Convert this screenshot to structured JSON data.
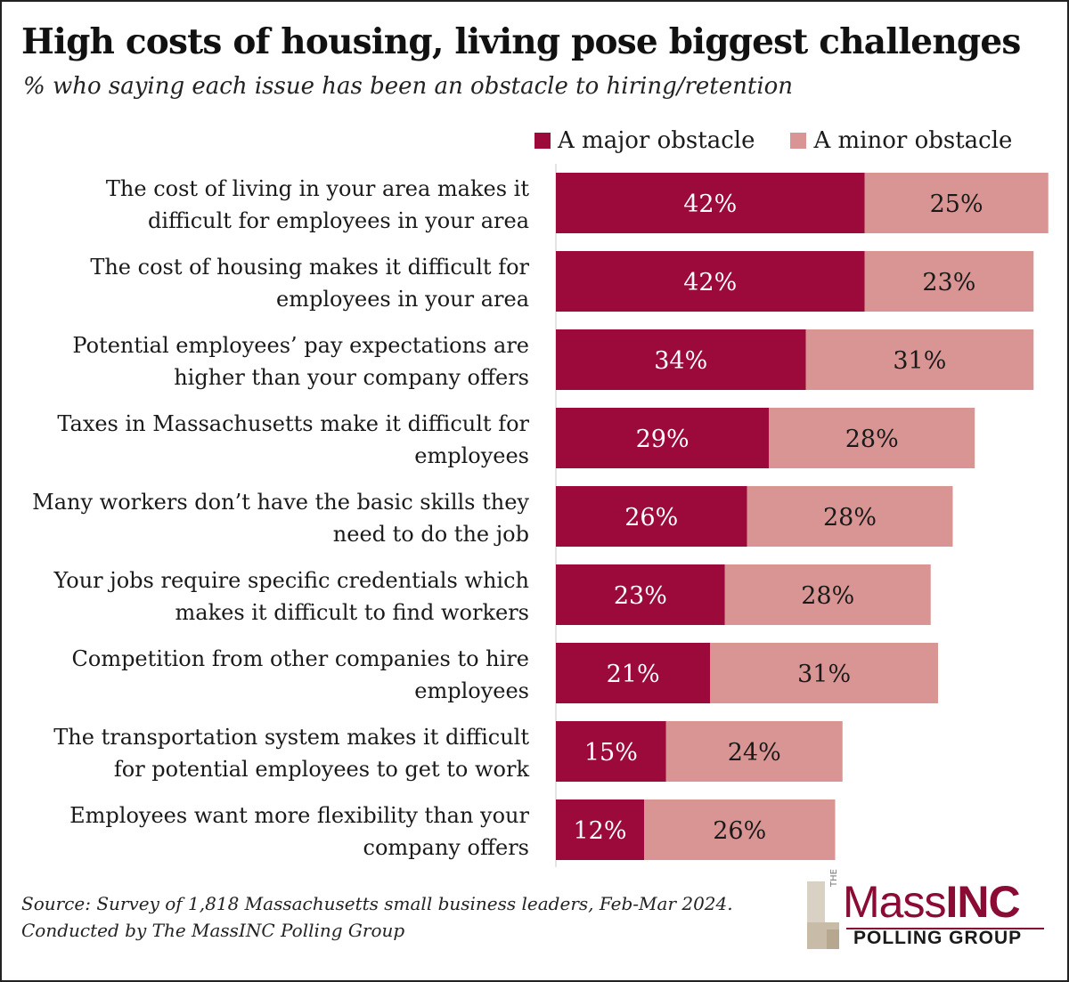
{
  "title": "High costs of housing, living pose biggest challenges",
  "subtitle": "% who saying each issue has been an obstacle to hiring/retention",
  "footer": {
    "source": "Source: Survey of 1,818 Massachusetts small business leaders, Feb-Mar 2024.",
    "conducted": "Conducted by The MassINC Polling Group"
  },
  "logo": {
    "the": "THE",
    "name_light": "Mass",
    "name_bold": "INC",
    "sub": "POLLING GROUP"
  },
  "colors": {
    "major": "#9b0a3a",
    "minor": "#d99594",
    "logo_accent": "#8a0c34"
  },
  "chart_data": {
    "type": "bar",
    "orientation": "horizontal",
    "stacked": true,
    "categories": [
      "The cost of living in your area makes it difficult for employees in your area",
      "The cost of housing makes it difficult for employees in your area",
      "Potential employees’ pay expectations are higher than your company offers",
      "Taxes in Massachusetts make it difficult for employees",
      "Many workers don’t have the basic skills they need to do the job",
      "Your jobs require specific credentials which makes it difficult to find workers",
      "Competition from other companies to hire employees",
      "The transportation system makes it difficult for potential employees to get to work",
      "Employees want more flexibility than your company offers"
    ],
    "category_lines": [
      [
        "The cost of living in your area makes it",
        "difficult for employees in your area"
      ],
      [
        "The cost of housing makes it difficult for",
        "employees in your area"
      ],
      [
        "Potential employees’ pay expectations are",
        "higher than your company offers"
      ],
      [
        "Taxes in Massachusetts make it difficult for",
        "employees"
      ],
      [
        "Many workers don’t have the basic skills they",
        "need to do the job"
      ],
      [
        "Your jobs require specific credentials which",
        "makes it difficult to find workers"
      ],
      [
        "Competition from other companies to hire",
        "employees"
      ],
      [
        "The transportation system makes it difficult",
        "for potential employees to get to work"
      ],
      [
        "Employees want more flexibility than your",
        "company offers"
      ]
    ],
    "series": [
      {
        "name": "A major obstacle",
        "values": [
          42,
          42,
          34,
          29,
          26,
          23,
          21,
          15,
          12
        ],
        "labels": [
          "42%",
          "42%",
          "34%",
          "29%",
          "26%",
          "23%",
          "21%",
          "15%",
          "12%"
        ]
      },
      {
        "name": "A minor obstacle",
        "values": [
          25,
          23,
          31,
          28,
          28,
          28,
          31,
          24,
          26
        ],
        "labels": [
          "25%",
          "23%",
          "31%",
          "28%",
          "28%",
          "28%",
          "31%",
          "24%",
          "26%"
        ]
      }
    ],
    "xlim": [
      0,
      67
    ],
    "grid": false,
    "legend_position": "top-right"
  }
}
